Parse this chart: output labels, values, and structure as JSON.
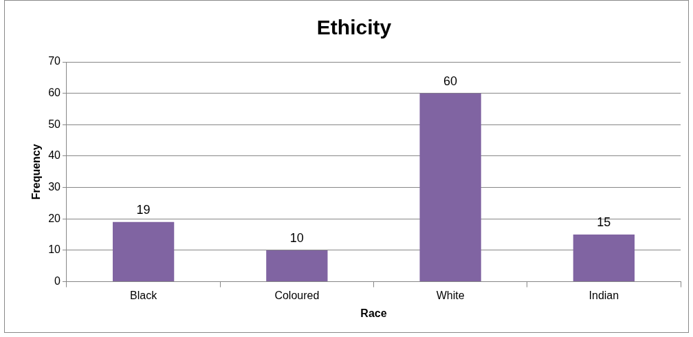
{
  "chart_data": {
    "type": "bar",
    "title": "Ethicity",
    "xlabel": "Race",
    "ylabel": "Frequency",
    "categories": [
      "Black",
      "Coloured",
      "White",
      "Indian"
    ],
    "values": [
      19,
      10,
      60,
      15
    ],
    "color": "#8064a2",
    "ylim": [
      0,
      70
    ],
    "yticks": [
      0,
      10,
      20,
      30,
      40,
      50,
      60,
      70
    ],
    "grid": "y",
    "data_labels": true
  }
}
